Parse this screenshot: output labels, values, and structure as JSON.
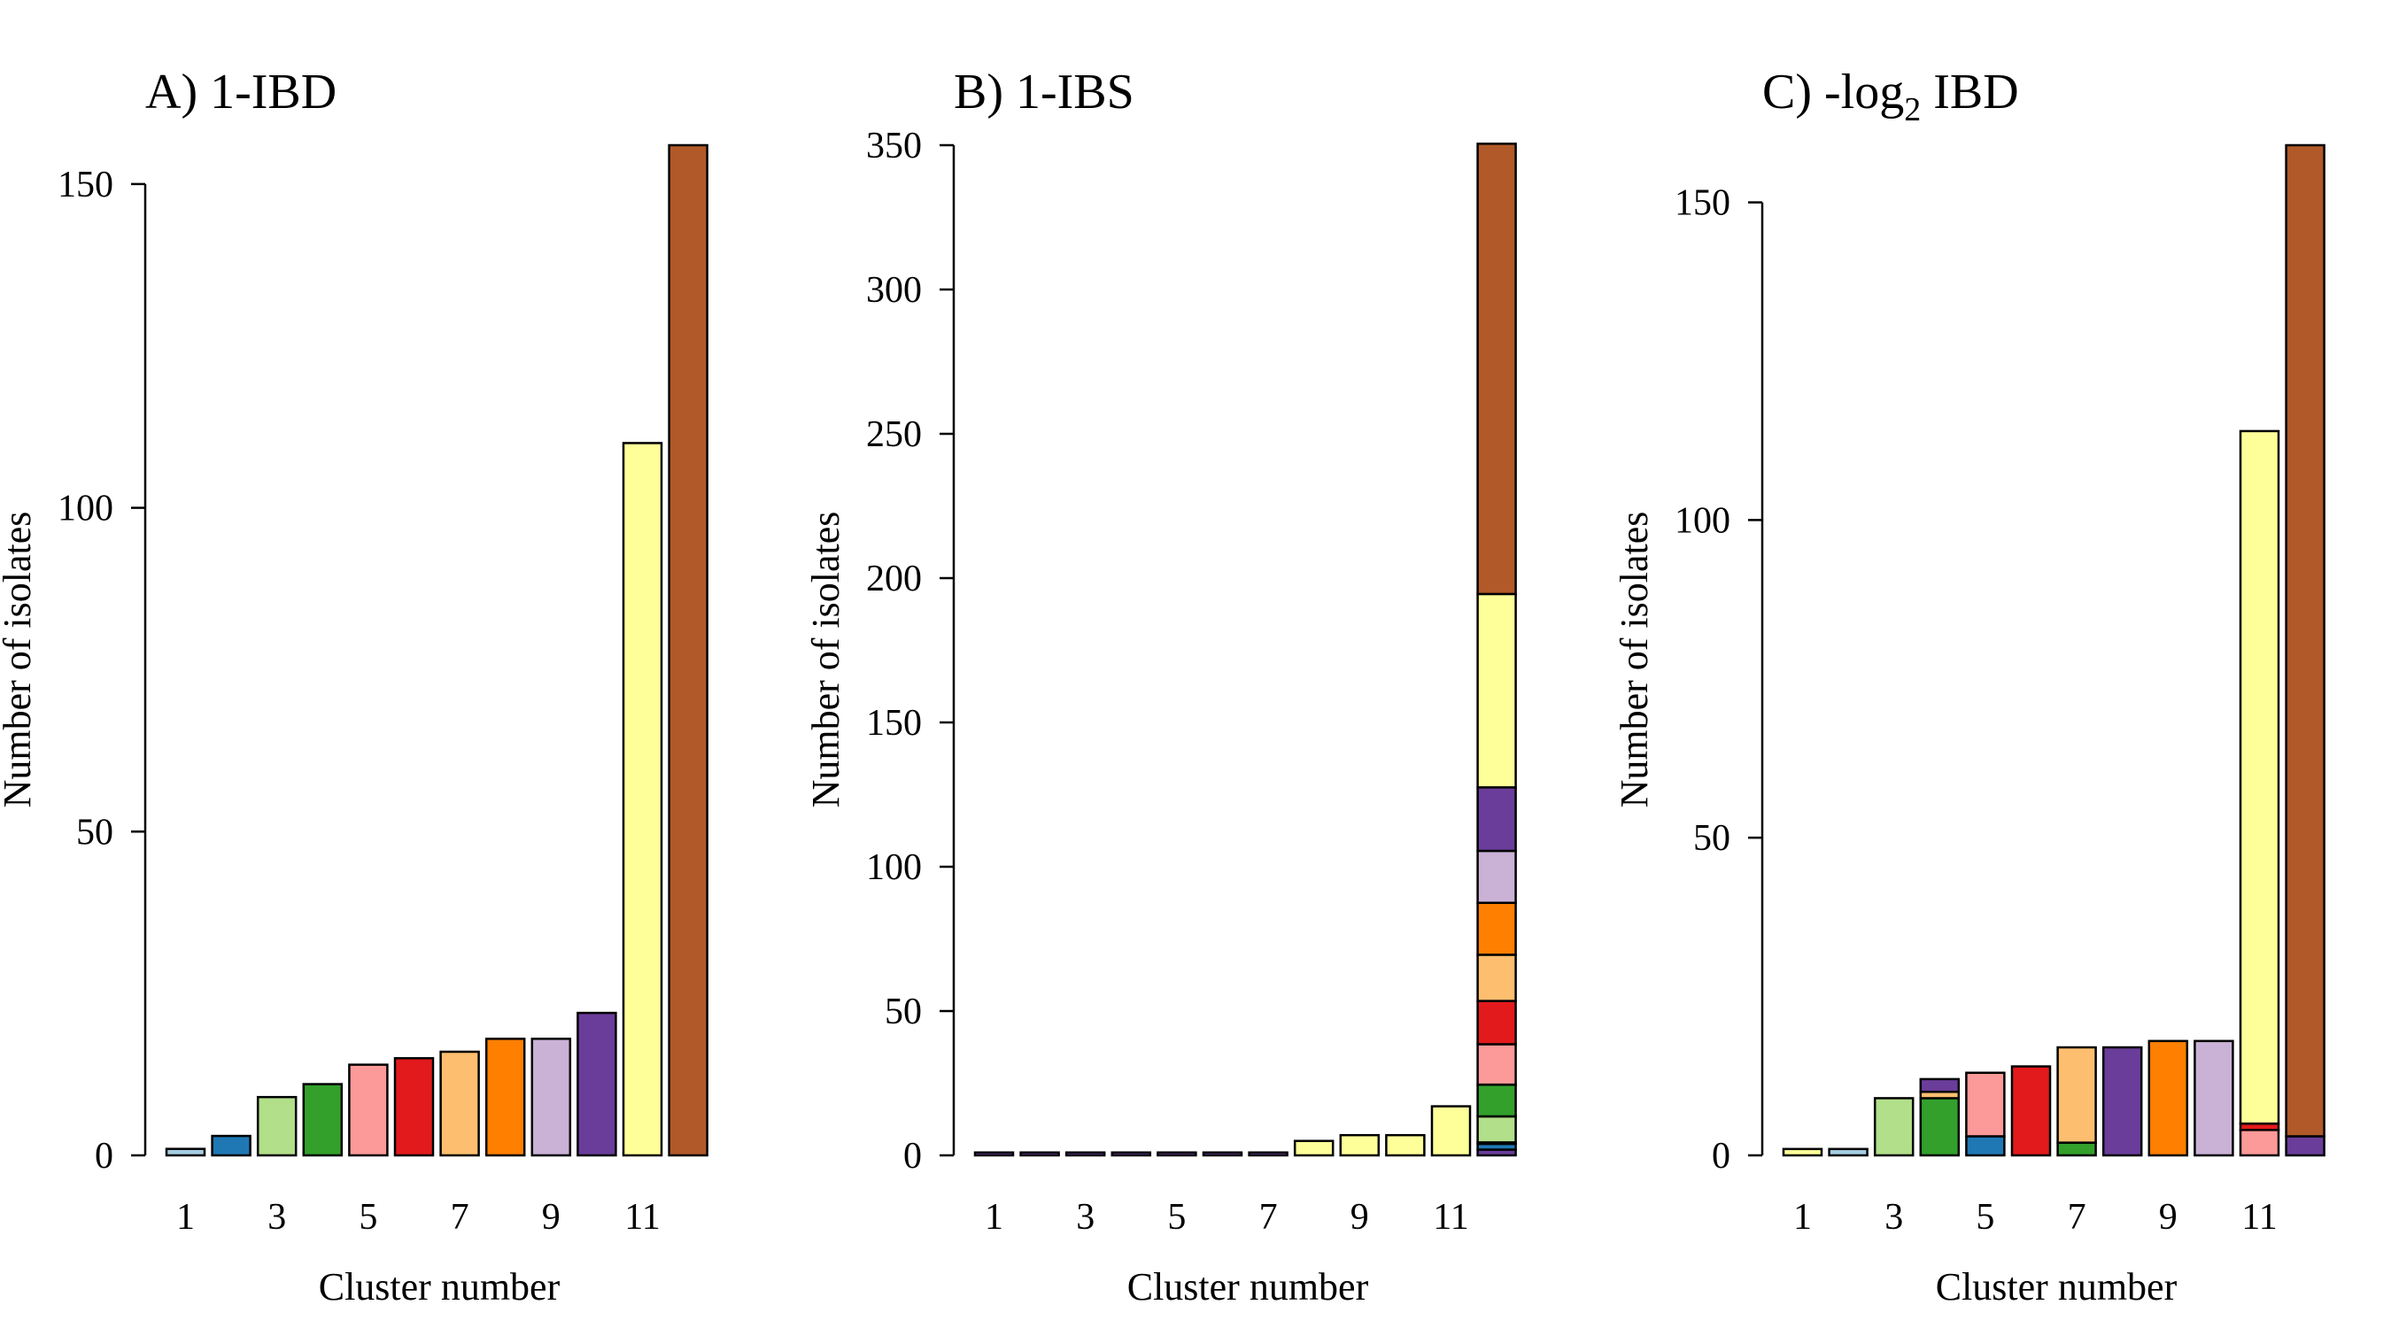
{
  "colors": {
    "palette": [
      "#A6CEE3",
      "#1F78B4",
      "#B2DF8A",
      "#33A02C",
      "#FB9A99",
      "#E31A1C",
      "#FDBF6F",
      "#FF7F00",
      "#CAB2D6",
      "#6A3D9A",
      "#FFFF99",
      "#B15928"
    ],
    "bar_outline": "#000000",
    "axis": "#000000",
    "background": "#ffffff"
  },
  "chart_data": [
    {
      "type": "bar",
      "stacked": true,
      "title": "A) 1-IBD",
      "title_prefix": "A) 1-IBD",
      "title_sub": "",
      "title_suffix": "",
      "xlabel": "Cluster number",
      "ylabel": "Number of isolates",
      "categories": [
        "1",
        "2",
        "3",
        "4",
        "5",
        "6",
        "7",
        "8",
        "9",
        "10",
        "11",
        "12"
      ],
      "x_tick_labels": [
        "1",
        "3",
        "5",
        "7",
        "9",
        "11"
      ],
      "y_ticks": [
        0,
        50,
        100,
        150
      ],
      "y_tick_labels": [
        "0",
        "50",
        "100",
        "150"
      ],
      "ylim": [
        0,
        156
      ],
      "grid": false,
      "legend": "none",
      "stacks": [
        [
          [
            0,
            1
          ]
        ],
        [
          [
            1,
            3
          ]
        ],
        [
          [
            2,
            9
          ]
        ],
        [
          [
            3,
            11
          ]
        ],
        [
          [
            4,
            14
          ]
        ],
        [
          [
            5,
            15
          ]
        ],
        [
          [
            6,
            16
          ]
        ],
        [
          [
            7,
            18
          ]
        ],
        [
          [
            8,
            18
          ]
        ],
        [
          [
            9,
            22
          ]
        ],
        [
          [
            10,
            110
          ]
        ],
        [
          [
            11,
            156
          ]
        ]
      ]
    },
    {
      "type": "bar",
      "stacked": true,
      "title": "B) 1-IBS",
      "title_prefix": "B) 1-IBS",
      "title_sub": "",
      "title_suffix": "",
      "xlabel": "Cluster number",
      "ylabel": "Number of isolates",
      "categories": [
        "1",
        "2",
        "3",
        "4",
        "5",
        "6",
        "7",
        "8",
        "9",
        "10",
        "11",
        "12"
      ],
      "x_tick_labels": [
        "1",
        "3",
        "5",
        "7",
        "9",
        "11"
      ],
      "y_ticks": [
        0,
        50,
        100,
        150,
        200,
        250,
        300,
        350
      ],
      "y_tick_labels": [
        "0",
        "50",
        "100",
        "150",
        "200",
        "250",
        "300",
        "350"
      ],
      "ylim": [
        0,
        350
      ],
      "grid": false,
      "legend": "none",
      "stacks": [
        [
          [
            9,
            1
          ]
        ],
        [
          [
            9,
            1
          ]
        ],
        [
          [
            9,
            1
          ]
        ],
        [
          [
            9,
            1
          ]
        ],
        [
          [
            9,
            1
          ]
        ],
        [
          [
            9,
            1
          ]
        ],
        [
          [
            9,
            1
          ]
        ],
        [
          [
            10,
            5
          ]
        ],
        [
          [
            10,
            7
          ]
        ],
        [
          [
            10,
            7
          ]
        ],
        [
          [
            10,
            17
          ]
        ],
        [
          [
            9,
            2
          ],
          [
            1,
            2
          ],
          [
            0,
            0.5
          ],
          [
            2,
            9
          ],
          [
            3,
            11
          ],
          [
            4,
            14
          ],
          [
            5,
            15
          ],
          [
            6,
            16
          ],
          [
            7,
            18
          ],
          [
            8,
            18
          ],
          [
            9,
            22
          ],
          [
            10,
            67
          ],
          [
            11,
            156
          ]
        ]
      ]
    },
    {
      "type": "bar",
      "stacked": true,
      "title": "C) -log2 IBD",
      "title_prefix": "C) -log",
      "title_sub": "2",
      "title_suffix": " IBD",
      "xlabel": "Cluster number",
      "ylabel": "Number of isolates",
      "categories": [
        "1",
        "2",
        "3",
        "4",
        "5",
        "6",
        "7",
        "8",
        "9",
        "10",
        "11",
        "12"
      ],
      "x_tick_labels": [
        "1",
        "3",
        "5",
        "7",
        "9",
        "11"
      ],
      "y_ticks": [
        0,
        50,
        100,
        150
      ],
      "y_tick_labels": [
        "0",
        "50",
        "100",
        "150"
      ],
      "ylim": [
        0,
        159
      ],
      "grid": false,
      "legend": "none",
      "stacks": [
        [
          [
            10,
            1
          ]
        ],
        [
          [
            0,
            1
          ]
        ],
        [
          [
            2,
            9
          ]
        ],
        [
          [
            3,
            9
          ],
          [
            6,
            1
          ],
          [
            9,
            2
          ]
        ],
        [
          [
            1,
            3
          ],
          [
            4,
            10
          ]
        ],
        [
          [
            5,
            14
          ]
        ],
        [
          [
            3,
            2
          ],
          [
            6,
            15
          ]
        ],
        [
          [
            9,
            17
          ]
        ],
        [
          [
            7,
            18
          ]
        ],
        [
          [
            8,
            18
          ]
        ],
        [
          [
            4,
            4
          ],
          [
            5,
            1
          ],
          [
            10,
            109
          ]
        ],
        [
          [
            9,
            3
          ],
          [
            11,
            156
          ]
        ]
      ]
    }
  ]
}
